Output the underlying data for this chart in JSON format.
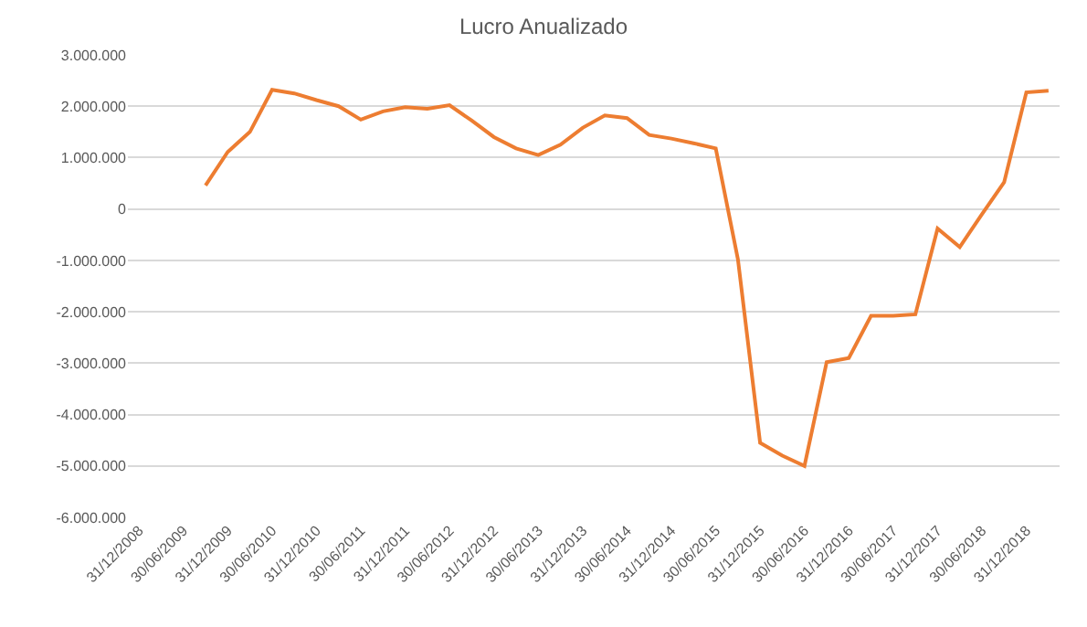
{
  "chart_data": {
    "type": "line",
    "title": "Lucro Anualizado",
    "categories": [
      "31/12/2008",
      null,
      "30/06/2009",
      null,
      "31/12/2009",
      null,
      "30/06/2010",
      null,
      "31/12/2010",
      null,
      "30/06/2011",
      null,
      "31/12/2011",
      null,
      "30/06/2012",
      null,
      "31/12/2012",
      null,
      "30/06/2013",
      null,
      "31/12/2013",
      null,
      "30/06/2014",
      null,
      "31/12/2014",
      null,
      "30/06/2015",
      null,
      "31/12/2015",
      null,
      "30/06/2016",
      null,
      "31/12/2016",
      null,
      "30/06/2017",
      null,
      "31/12/2017",
      null,
      "30/06/2018",
      null,
      "31/12/2018",
      null
    ],
    "series": [
      {
        "color": "#ed7d31",
        "values": [
          null,
          null,
          null,
          460000,
          1110000,
          1500000,
          2320000,
          2250000,
          2120000,
          2000000,
          1740000,
          1900000,
          1980000,
          1950000,
          2020000,
          1720000,
          1400000,
          1180000,
          1050000,
          1250000,
          1580000,
          1820000,
          1770000,
          1440000,
          1370000,
          1280000,
          1180000,
          -980000,
          -4550000,
          -4800000,
          -5000000,
          -2980000,
          -2900000,
          -2080000,
          -2080000,
          -2050000,
          -380000,
          -740000,
          -100000,
          520000,
          2270000,
          2300000
        ]
      }
    ],
    "ylim": [
      -6000000,
      3000000
    ],
    "yticks": [
      {
        "value": -6000000,
        "label": "-6.000.000"
      },
      {
        "value": -5000000,
        "label": "-5.000.000"
      },
      {
        "value": -4000000,
        "label": "-4.000.000"
      },
      {
        "value": -3000000,
        "label": "-3.000.000"
      },
      {
        "value": -2000000,
        "label": "-2.000.000"
      },
      {
        "value": -1000000,
        "label": "-1.000.000"
      },
      0,
      {
        "value": 1000000,
        "label": "1.000.000"
      },
      {
        "value": 2000000,
        "label": "2.000.000"
      },
      {
        "value": 3000000,
        "label": "3.000.000"
      }
    ],
    "grid": "y",
    "marker": "none",
    "line_style": "solid"
  }
}
